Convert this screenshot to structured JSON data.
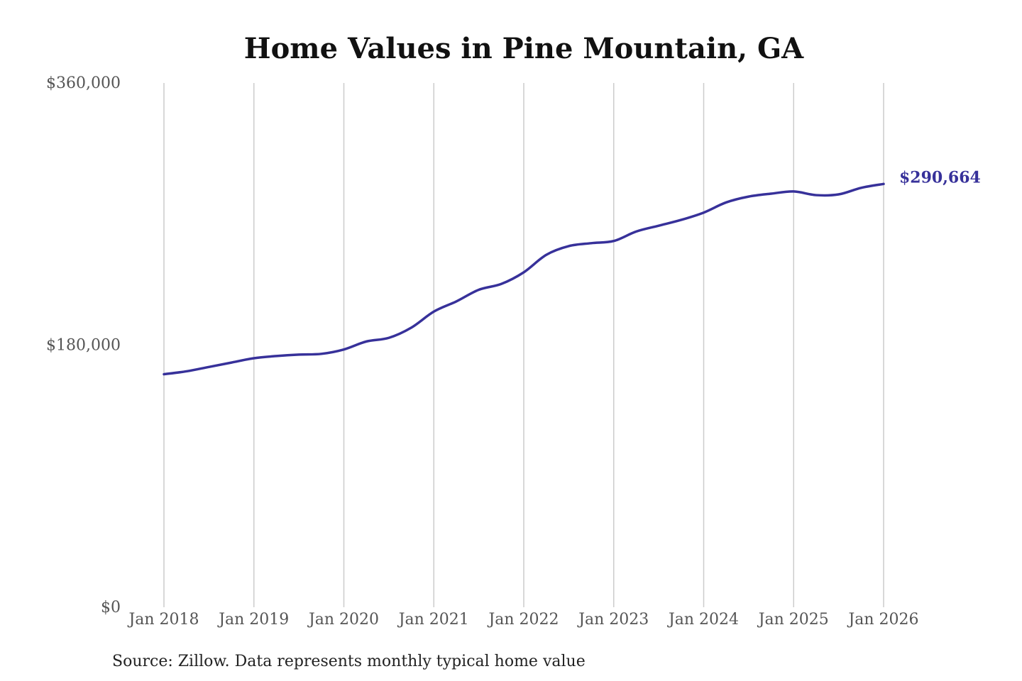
{
  "chart_data": {
    "type": "line",
    "title": "Home Values in Pine Mountain, GA",
    "source": "Source: Zillow. Data represents monthly typical home value",
    "xlabel": "",
    "ylabel": "",
    "x_ticks": [
      "Jan 2018",
      "Jan 2019",
      "Jan 2020",
      "Jan 2021",
      "Jan 2022",
      "Jan 2023",
      "Jan 2024",
      "Jan 2025",
      "Jan 2026"
    ],
    "y_ticks": [
      "$0",
      "$180,000",
      "$360,000"
    ],
    "ylim": [
      0,
      360000
    ],
    "xlim": [
      "2018-01",
      "2026-01"
    ],
    "grid": "vertical",
    "line_color": "#37319a",
    "end_label": "$290,664",
    "series": [
      {
        "x": [
          "2018-01",
          "2018-04",
          "2018-07",
          "2018-10",
          "2019-01",
          "2019-04",
          "2019-07",
          "2019-10",
          "2020-01",
          "2020-04",
          "2020-07",
          "2020-10",
          "2021-01",
          "2021-04",
          "2021-07",
          "2021-10",
          "2022-01",
          "2022-04",
          "2022-07",
          "2022-10",
          "2023-01",
          "2023-04",
          "2023-07",
          "2023-10",
          "2024-01",
          "2024-04",
          "2024-07",
          "2024-10",
          "2025-01",
          "2025-04",
          "2025-07",
          "2025-10",
          "2026-01"
        ],
        "values": [
          160000,
          162000,
          165000,
          168000,
          171000,
          172500,
          173500,
          174000,
          177000,
          182500,
          185000,
          192000,
          203000,
          210000,
          218000,
          222000,
          230000,
          242000,
          248000,
          250000,
          251500,
          258000,
          262000,
          266000,
          271000,
          278000,
          282000,
          284000,
          285500,
          283000,
          283500,
          288000,
          290664
        ]
      }
    ]
  }
}
